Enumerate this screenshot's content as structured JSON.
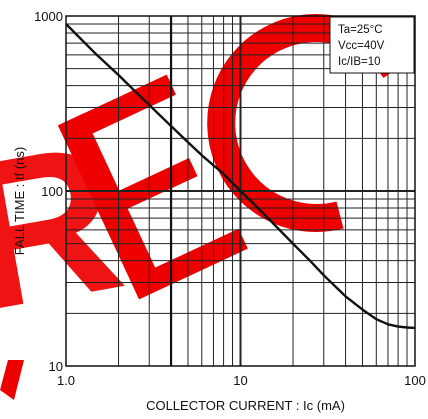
{
  "chart_data": {
    "type": "line",
    "title": "",
    "xlabel": "COLLECTOR CURRENT : Ic (mA)",
    "ylabel": "FALL TIME : tf (ns)",
    "x_scale": "log",
    "y_scale": "log",
    "xlim": [
      1,
      100
    ],
    "ylim": [
      10,
      1000
    ],
    "x_ticks": [
      "1.0",
      "10",
      "100"
    ],
    "y_ticks": [
      "10",
      "100",
      "1000"
    ],
    "grid": true,
    "legend": "none",
    "annotations": [
      "Ta=25°C",
      "Vcc=40V",
      "Ic/IB=10"
    ],
    "series": [
      {
        "x": [
          1.0,
          1.2,
          1.5,
          2.0,
          2.5,
          3.0,
          4.0,
          5.0,
          6.0,
          8.0,
          10,
          12,
          15,
          20,
          25,
          30,
          40,
          50,
          60,
          70,
          80,
          90,
          100
        ],
        "y": [
          900,
          750,
          600,
          460,
          370,
          310,
          235,
          190,
          160,
          125,
          100,
          84,
          67,
          50,
          40,
          33,
          25,
          21,
          18.5,
          17.3,
          16.8,
          16.6,
          16.5
        ]
      }
    ]
  },
  "watermark": {
    "text": "REFERENCE",
    "color": "#ee0000"
  },
  "colors": {
    "curve": "#111111",
    "grid": "#222222",
    "background": "#ffffff"
  }
}
